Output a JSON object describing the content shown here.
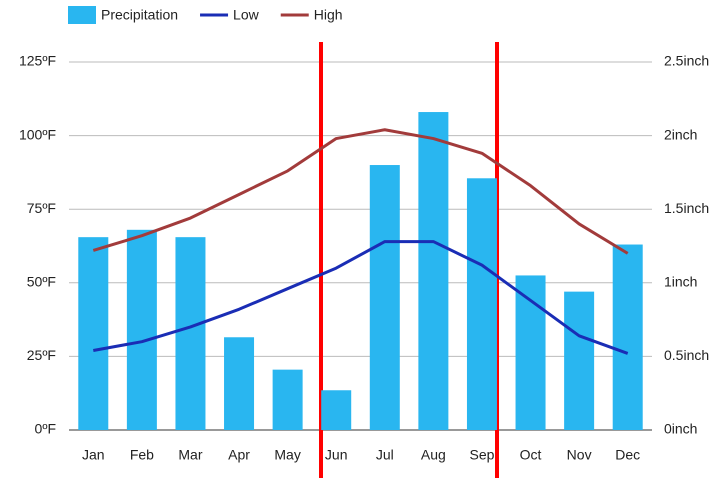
{
  "chart_data": {
    "type": "bar-line",
    "categories": [
      "Jan",
      "Feb",
      "Mar",
      "Apr",
      "May",
      "Jun",
      "Jul",
      "Aug",
      "Sep",
      "Oct",
      "Nov",
      "Dec"
    ],
    "series": [
      {
        "name": "Precipitation",
        "type": "bar",
        "axis": "y2",
        "color": "#29b6f0",
        "values": [
          1.31,
          1.36,
          1.31,
          0.63,
          0.41,
          0.27,
          1.8,
          2.16,
          1.71,
          1.05,
          0.94,
          1.26
        ]
      },
      {
        "name": "Low",
        "type": "line",
        "color": "#1a2db5",
        "values": [
          27,
          30,
          35,
          41,
          48,
          55,
          64,
          64,
          56,
          44,
          32,
          26
        ]
      },
      {
        "name": "High",
        "type": "line",
        "color": "#a23b3b",
        "values": [
          61,
          66,
          72,
          80,
          88,
          99,
          102,
          99,
          94,
          83,
          70,
          60
        ]
      }
    ],
    "ylim": [
      0,
      125
    ],
    "yticks": [
      {
        "value": 0,
        "label": "0ºF"
      },
      {
        "value": 25,
        "label": "25ºF"
      },
      {
        "value": 50,
        "label": "50ºF"
      },
      {
        "value": 75,
        "label": "75ºF"
      },
      {
        "value": 100,
        "label": "100ºF"
      },
      {
        "value": 125,
        "label": "125ºF"
      }
    ],
    "y2lim": [
      0,
      2.5
    ],
    "y2ticks": [
      {
        "value": 0,
        "label": "0inch"
      },
      {
        "value": 0.5,
        "label": "0.5inch"
      },
      {
        "value": 1,
        "label": "1inch"
      },
      {
        "value": 1.5,
        "label": "1.5inch"
      },
      {
        "value": 2,
        "label": "2inch"
      },
      {
        "value": 2.5,
        "label": "2.5inch"
      }
    ],
    "grid": true
  }
}
